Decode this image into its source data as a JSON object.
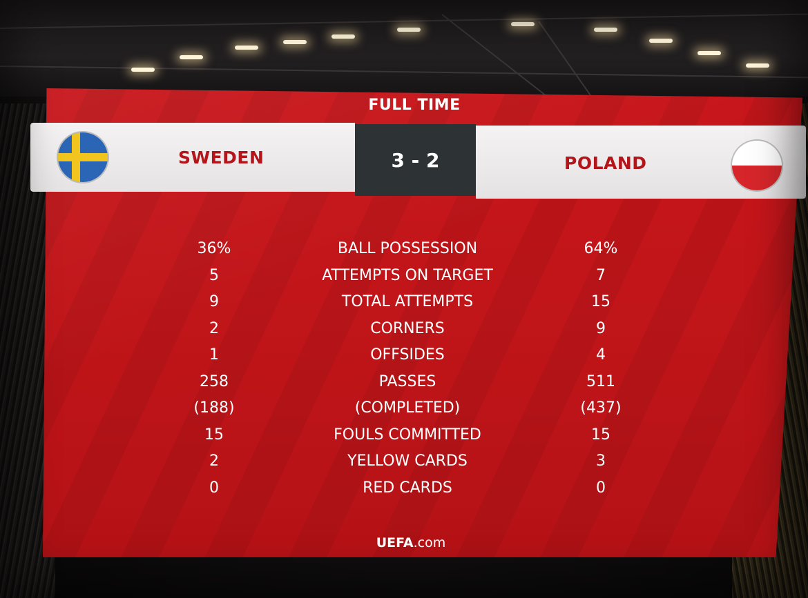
{
  "header": {
    "status": "FULL TIME"
  },
  "match": {
    "home": {
      "name": "SWEDEN",
      "flag_icon": "sweden-flag-icon",
      "flag_colors": [
        "#2a65b6",
        "#f2c51e"
      ]
    },
    "away": {
      "name": "POLAND",
      "flag_icon": "poland-flag-icon",
      "flag_colors": [
        "#ffffff",
        "#d6262b"
      ]
    },
    "score": "3 - 2"
  },
  "stats": [
    {
      "label": "BALL POSSESSION",
      "home": "36%",
      "away": "64%"
    },
    {
      "label": "ATTEMPTS ON TARGET",
      "home": "5",
      "away": "7"
    },
    {
      "label": "TOTAL ATTEMPTS",
      "home": "9",
      "away": "15"
    },
    {
      "label": "CORNERS",
      "home": "2",
      "away": "9"
    },
    {
      "label": "OFFSIDES",
      "home": "1",
      "away": "4"
    },
    {
      "label": "PASSES",
      "home": "258",
      "away": "511"
    },
    {
      "label": "(COMPLETED)",
      "home": "(188)",
      "away": "(437)"
    },
    {
      "label": "FOULS COMMITTED",
      "home": "15",
      "away": "15"
    },
    {
      "label": "YELLOW CARDS",
      "home": "2",
      "away": "3"
    },
    {
      "label": "RED CARDS",
      "home": "0",
      "away": "0"
    }
  ],
  "footer": {
    "brand": "UEFA",
    "suffix": ".com"
  },
  "colors": {
    "board_red": "#c01519",
    "score_bg": "#2d3235",
    "team_text": "#b3151a"
  }
}
